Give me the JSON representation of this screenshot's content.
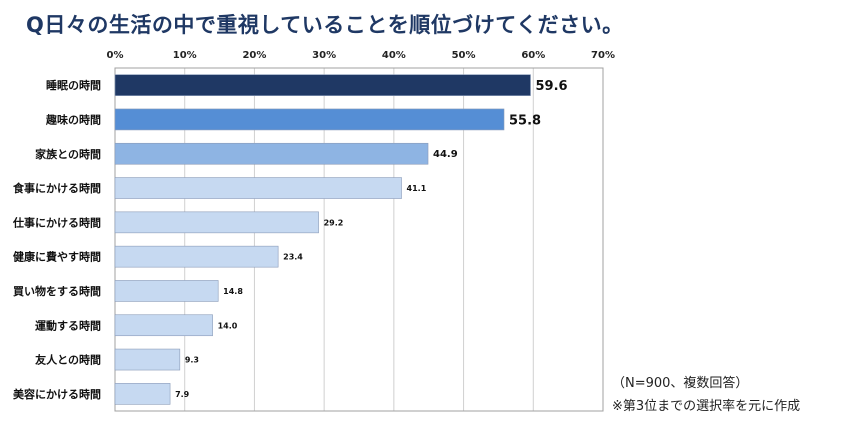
{
  "title": "Q日々の生活の中で重視していることを順位づけてください。",
  "notes": {
    "line1": "（N=900、複数回答）",
    "line2": "※第3位までの選択率を元に作成"
  },
  "colors": {
    "rank1": "#1f3864",
    "rank2": "#558ed5",
    "rank3": "#8eb4e3",
    "other": "#c6d9f1",
    "gridline": "#d0d0d0",
    "border": "#a0a0a0"
  },
  "chart_data": {
    "type": "bar",
    "orientation": "horizontal",
    "title": "Q日々の生活の中で重視していることを順位づけてください。",
    "categories": [
      "睡眠の時間",
      "趣味の時間",
      "家族との時間",
      "食事にかける時間",
      "仕事にかける時間",
      "健康に費やす時間",
      "買い物をする時間",
      "運動する時間",
      "友人との時間",
      "美容にかける時間"
    ],
    "values": [
      59.6,
      55.8,
      44.9,
      41.1,
      29.2,
      23.4,
      14.8,
      14.0,
      9.3,
      7.9
    ],
    "value_labels": [
      "59.6",
      "55.8",
      "44.9",
      "41.1",
      "29.2",
      "23.4",
      "14.8",
      "14.0",
      "9.3",
      "7.9"
    ],
    "xlim": [
      0,
      70
    ],
    "ticks": [
      0,
      10,
      20,
      30,
      40,
      50,
      60,
      70
    ],
    "tick_labels": [
      "0%",
      "10%",
      "20%",
      "30%",
      "40%",
      "50%",
      "60%",
      "70%"
    ],
    "grid": true,
    "xlabel": "",
    "ylabel": ""
  }
}
